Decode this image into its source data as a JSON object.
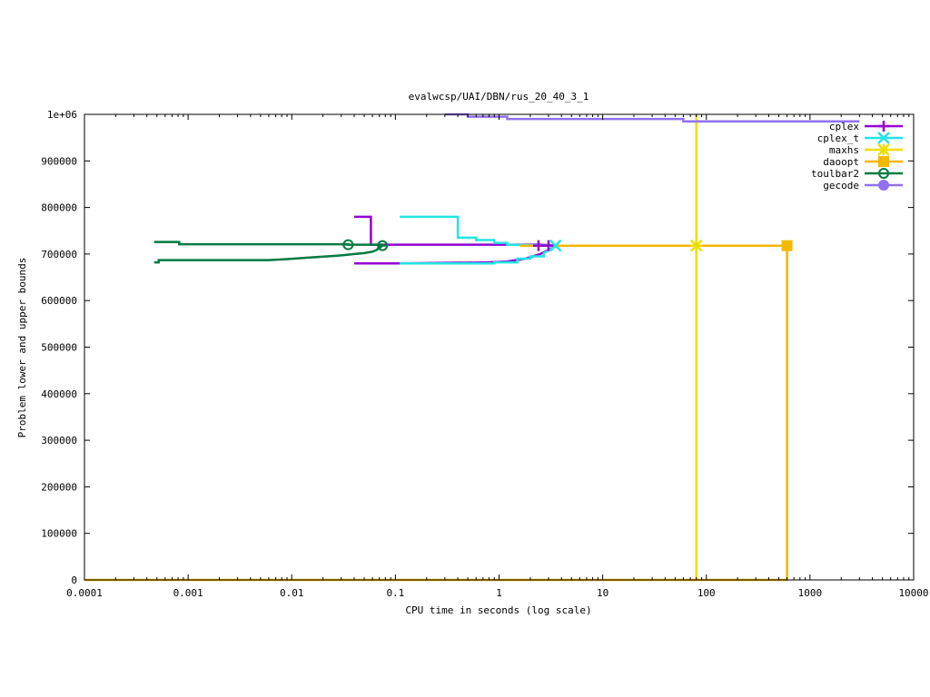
{
  "chart_data": {
    "type": "line",
    "title": "evalwcsp/UAI/DBN/rus_20_40_3_1",
    "xlabel": "CPU time in seconds (log scale)",
    "ylabel": "Problem lower and upper bounds",
    "x_scale": "log",
    "xlim": [
      0.0001,
      10000
    ],
    "ylim": [
      0,
      1000000
    ],
    "x_tick_labels": [
      "0.0001",
      "0.001",
      "0.01",
      "0.1",
      "1",
      "10",
      "100",
      "1000",
      "10000"
    ],
    "y_tick_labels": [
      "0",
      "100000",
      "200000",
      "300000",
      "400000",
      "500000",
      "600000",
      "700000",
      "800000",
      "900000",
      "1e+06"
    ],
    "grid": false,
    "legend_position": "top-right",
    "series": [
      {
        "name": "cplex",
        "color": "#9400d3",
        "marker": "plus",
        "upper": [
          [
            0.04,
            780000
          ],
          [
            0.058,
            780000
          ],
          [
            0.058,
            720000
          ],
          [
            2.5,
            720000
          ],
          [
            3.6,
            718000
          ]
        ],
        "lower": [
          [
            0.04,
            680000
          ],
          [
            0.11,
            680000
          ],
          [
            0.11,
            680000
          ],
          [
            0.8,
            682000
          ],
          [
            1.2,
            684000
          ],
          [
            1.8,
            690000
          ],
          [
            2.5,
            700000
          ],
          [
            3.6,
            718000
          ]
        ],
        "markers": [
          [
            2.4,
            718000
          ],
          [
            3.0,
            718000
          ]
        ]
      },
      {
        "name": "cplex_t",
        "color": "#22e5e5",
        "marker": "x",
        "upper": [
          [
            0.11,
            780000
          ],
          [
            0.4,
            780000
          ],
          [
            0.4,
            735000
          ],
          [
            0.6,
            735000
          ],
          [
            0.6,
            730000
          ],
          [
            0.9,
            730000
          ],
          [
            0.9,
            724000
          ],
          [
            1.2,
            724000
          ],
          [
            1.2,
            720000
          ],
          [
            3.6,
            718000
          ]
        ],
        "lower": [
          [
            0.11,
            680000
          ],
          [
            0.9,
            680000
          ],
          [
            0.9,
            682000
          ],
          [
            1.5,
            682000
          ],
          [
            1.5,
            690000
          ],
          [
            2.0,
            690000
          ],
          [
            2.0,
            695000
          ],
          [
            2.7,
            695000
          ],
          [
            2.7,
            702000
          ],
          [
            3.6,
            718000
          ]
        ],
        "markers": [
          [
            3.5,
            718000
          ]
        ]
      },
      {
        "name": "maxhs",
        "color": "#ece000",
        "marker": "star",
        "upper": [
          [
            1.6,
            718000
          ],
          [
            80,
            718000
          ]
        ],
        "lower": [
          [
            80,
            0
          ],
          [
            80,
            1000000
          ]
        ],
        "markers": [
          [
            80,
            718000
          ]
        ]
      },
      {
        "name": "daoopt",
        "color": "#f5b800",
        "marker": "square",
        "upper": [
          [
            1.6,
            718000
          ],
          [
            600,
            718000
          ]
        ],
        "lower": [
          [
            0.0001,
            0
          ],
          [
            600,
            0
          ],
          [
            600,
            718000
          ]
        ],
        "markers": [
          [
            600,
            718000
          ]
        ]
      },
      {
        "name": "toulbar2",
        "color": "#007a40",
        "marker": "circle-open",
        "upper": [
          [
            0.00047,
            726000
          ],
          [
            0.00082,
            726000
          ],
          [
            0.00082,
            721000
          ],
          [
            0.035,
            721000
          ],
          [
            0.035,
            720000
          ],
          [
            0.075,
            720000
          ],
          [
            0.075,
            718000
          ]
        ],
        "lower": [
          [
            0.00047,
            682000
          ],
          [
            0.00052,
            682000
          ],
          [
            0.00052,
            687000
          ],
          [
            0.006,
            687000
          ],
          [
            0.009,
            689000
          ],
          [
            0.012,
            691000
          ],
          [
            0.016,
            693000
          ],
          [
            0.022,
            695000
          ],
          [
            0.03,
            697000
          ],
          [
            0.04,
            700000
          ],
          [
            0.05,
            702000
          ],
          [
            0.06,
            705000
          ],
          [
            0.065,
            708000
          ],
          [
            0.07,
            713000
          ],
          [
            0.075,
            718000
          ]
        ],
        "markers": [
          [
            0.035,
            720000
          ],
          [
            0.075,
            718000
          ]
        ]
      },
      {
        "name": "gecode",
        "color": "#9370ef",
        "marker": "circle-filled",
        "upper": [
          [
            0.3,
            1000000
          ],
          [
            0.5,
            1000000
          ],
          [
            0.5,
            995000
          ],
          [
            1.2,
            995000
          ],
          [
            1.2,
            990000
          ],
          [
            60,
            990000
          ],
          [
            60,
            985000
          ],
          [
            3000,
            985000
          ]
        ],
        "lower": [],
        "markers": []
      }
    ]
  }
}
